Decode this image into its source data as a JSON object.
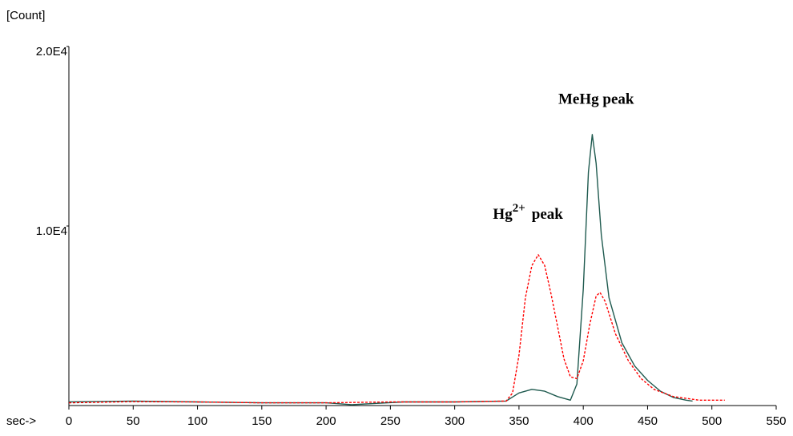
{
  "chart_data": {
    "type": "line",
    "title": "",
    "ylabel": "[Count]",
    "xlabel": "sec->",
    "xlim": [
      0,
      550
    ],
    "ylim": [
      0,
      20000
    ],
    "x_ticks": [
      0,
      50,
      100,
      150,
      200,
      250,
      300,
      350,
      400,
      450,
      500,
      550
    ],
    "y_ticks": [
      {
        "value": 10000,
        "label": "1.0E4"
      },
      {
        "value": 20000,
        "label": "2.0E4"
      }
    ],
    "grid": false,
    "legend": "none",
    "series": [
      {
        "color": "#1f5a4f",
        "style": "solid",
        "points": [
          [
            0,
            200
          ],
          [
            50,
            250
          ],
          [
            100,
            200
          ],
          [
            150,
            150
          ],
          [
            200,
            150
          ],
          [
            220,
            50
          ],
          [
            260,
            200
          ],
          [
            300,
            200
          ],
          [
            340,
            250
          ],
          [
            350,
            700
          ],
          [
            360,
            900
          ],
          [
            370,
            800
          ],
          [
            380,
            500
          ],
          [
            390,
            300
          ],
          [
            395,
            1200
          ],
          [
            400,
            6500
          ],
          [
            404,
            13000
          ],
          [
            407,
            15100
          ],
          [
            410,
            13500
          ],
          [
            414,
            9500
          ],
          [
            420,
            6000
          ],
          [
            430,
            3500
          ],
          [
            440,
            2200
          ],
          [
            450,
            1400
          ],
          [
            460,
            800
          ],
          [
            470,
            450
          ],
          [
            480,
            300
          ],
          [
            485,
            250
          ]
        ]
      },
      {
        "color": "#ff0000",
        "style": "dashed",
        "points": [
          [
            0,
            150
          ],
          [
            50,
            220
          ],
          [
            100,
            200
          ],
          [
            150,
            150
          ],
          [
            200,
            150
          ],
          [
            250,
            200
          ],
          [
            300,
            200
          ],
          [
            340,
            250
          ],
          [
            345,
            700
          ],
          [
            350,
            2800
          ],
          [
            355,
            6000
          ],
          [
            360,
            7800
          ],
          [
            365,
            8400
          ],
          [
            370,
            7800
          ],
          [
            375,
            6200
          ],
          [
            380,
            4400
          ],
          [
            385,
            2600
          ],
          [
            390,
            1600
          ],
          [
            395,
            1500
          ],
          [
            400,
            2500
          ],
          [
            405,
            4500
          ],
          [
            410,
            6100
          ],
          [
            413,
            6300
          ],
          [
            417,
            5800
          ],
          [
            425,
            4000
          ],
          [
            435,
            2500
          ],
          [
            445,
            1500
          ],
          [
            455,
            900
          ],
          [
            470,
            500
          ],
          [
            490,
            300
          ],
          [
            510,
            300
          ]
        ]
      }
    ],
    "annotations": [
      {
        "text": "MeHg peak",
        "x": 410,
        "y": 16800
      },
      {
        "text": "Hg",
        "sup": "2+",
        "suffix": "peak",
        "x": 357,
        "y": 10400
      }
    ]
  }
}
